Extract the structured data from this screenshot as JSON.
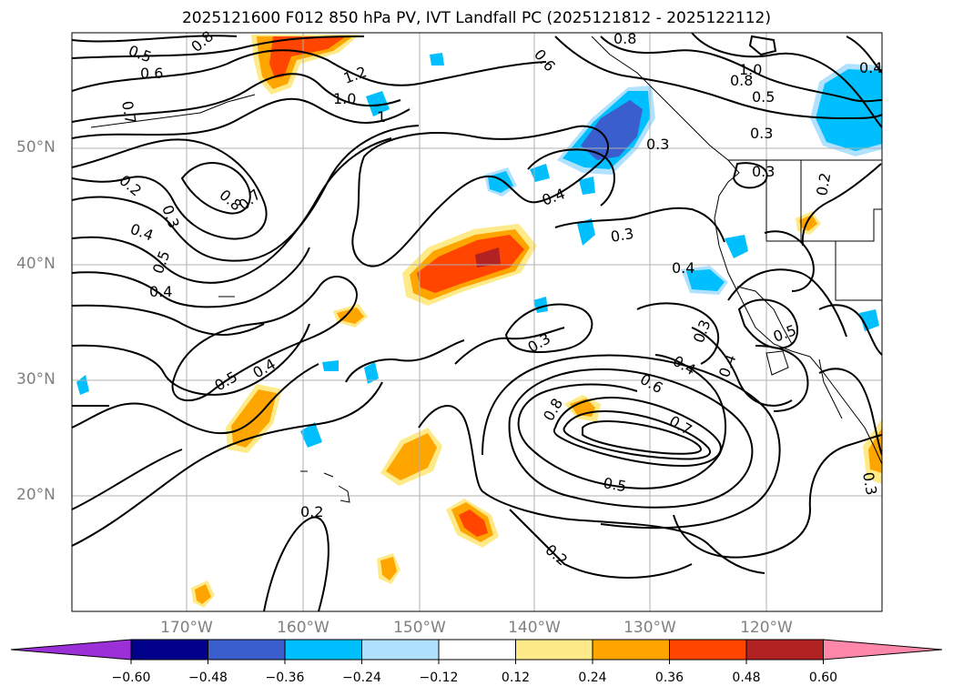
{
  "title": "2025121600 F012 850 hPa PV, IVT Landfall PC (2025121812 - 2025122112)",
  "lat_labels": [
    "50°N",
    "40°N",
    "30°N",
    "20°N"
  ],
  "lon_labels": [
    "170°W",
    "160°W",
    "150°W",
    "140°W",
    "130°W",
    "120°W"
  ],
  "colorbar": {
    "ticks": [
      "−0.60",
      "−0.48",
      "−0.36",
      "−0.24",
      "−0.12",
      "0.12",
      "0.24",
      "0.36",
      "0.48",
      "0.60"
    ],
    "colors": {
      "under": "#9b30d9",
      "c1": "#00008b",
      "c2": "#3a5fcd",
      "c3": "#00bfff",
      "c4": "#b0e2ff",
      "c5": "#ffffff",
      "c6": "#ffea8a",
      "c7": "#ffa500",
      "c8": "#ff4500",
      "c9": "#b22222",
      "over": "#ff88aa"
    }
  },
  "contour_labels": [
    "0.5",
    "0.8",
    "0.6",
    "0.7",
    "1.2",
    "1.0",
    "0.8",
    "0.6",
    "1.0",
    "0.8",
    "0.5",
    "0.2",
    "0.3",
    "0.8",
    "0.7",
    "0.4",
    "0.5",
    "0.4",
    "0.4",
    "0.3",
    "0.3",
    "0.3",
    "0.2",
    "0.3",
    "0.4",
    "0.3",
    "0.5",
    "0.4",
    "0.5",
    "0.4",
    "0.8",
    "0.6",
    "0.4",
    "0.7",
    "0.5",
    "0.2",
    "0.2",
    "0.3",
    "0.3",
    "0.4",
    "1"
  ]
}
